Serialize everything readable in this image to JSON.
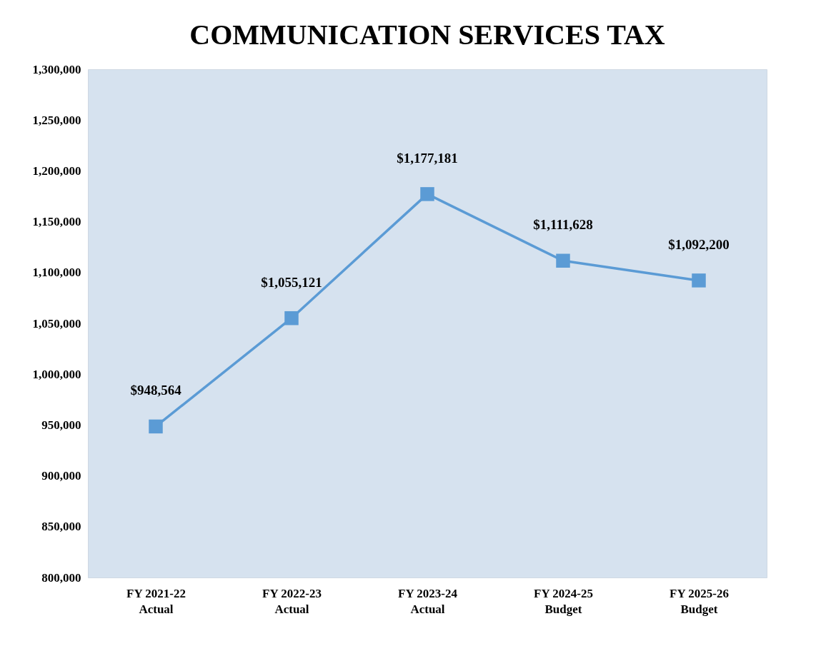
{
  "chart_data": {
    "type": "line",
    "title": "COMMUNICATION SERVICES TAX",
    "categories": [
      "FY 2021-22\nActual",
      "FY 2022-23\nActual",
      "FY 2023-24\nActual",
      "FY 2024-25\nBudget",
      "FY 2025-26\nBudget"
    ],
    "series": [
      {
        "color": "#5b9bd5",
        "values": [
          948564,
          1055121,
          1177181,
          1111628,
          1092200
        ],
        "value_labels": [
          "$948,564",
          "$1,055,121",
          "$1,177,181",
          "$1,111,628",
          "$1,092,200"
        ]
      }
    ],
    "ylim": [
      800000,
      1300000
    ],
    "yticks": [
      {
        "value": 800000,
        "label": "800,000"
      },
      {
        "value": 850000,
        "label": "850,000"
      },
      {
        "value": 900000,
        "label": "900,000"
      },
      {
        "value": 950000,
        "label": "950,000"
      },
      {
        "value": 1000000,
        "label": "1,000,000"
      },
      {
        "value": 1050000,
        "label": "1,050,000"
      },
      {
        "value": 1100000,
        "label": "1,100,000"
      },
      {
        "value": 1150000,
        "label": "1,150,000"
      },
      {
        "value": 1200000,
        "label": "1,200,000"
      },
      {
        "value": 1250000,
        "label": "1,250,000"
      },
      {
        "value": 1300000,
        "label": "1,300,000"
      }
    ],
    "marker": "square",
    "grid": false
  }
}
